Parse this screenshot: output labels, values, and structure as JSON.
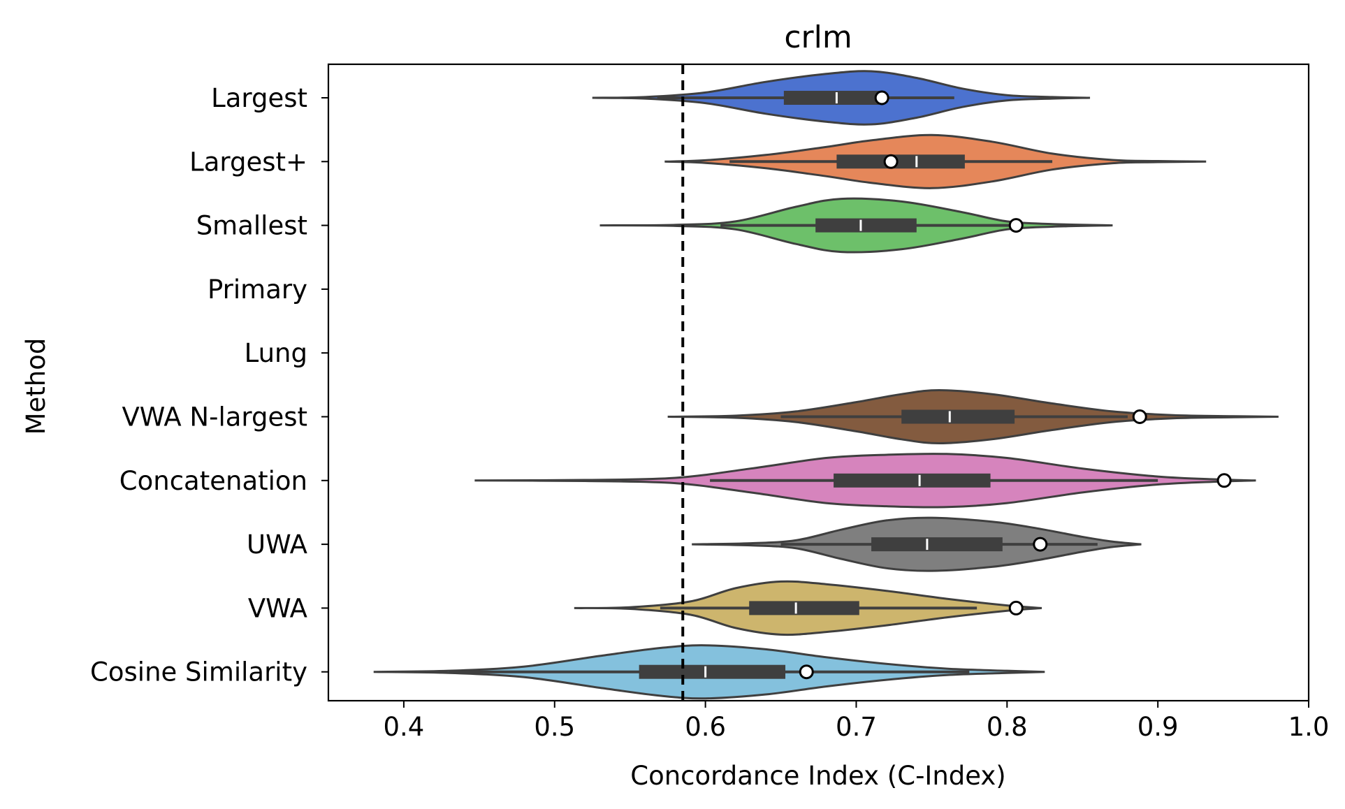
{
  "chart_data": {
    "type": "violin",
    "title": "crlm",
    "xlabel": "Concordance Index (C-Index)",
    "ylabel": "Method",
    "xlim": [
      0.35,
      1.0
    ],
    "xticks": [
      "0.4",
      "0.5",
      "0.6",
      "0.7",
      "0.8",
      "0.9",
      "1.0"
    ],
    "reference_line": {
      "x": 0.585,
      "style": "dashed",
      "color": "#000000"
    },
    "grid": false,
    "categories": [
      "Largest",
      "Largest+",
      "Smallest",
      "Primary",
      "Lung",
      "VWA N-largest",
      "Concatenation",
      "UWA",
      "VWA",
      "Cosine Similarity"
    ],
    "series": [
      {
        "category": "Largest",
        "color": "#4c72cf",
        "min": 0.525,
        "max": 0.855,
        "q1": 0.652,
        "median": 0.687,
        "q3": 0.715,
        "whisker_low": 0.568,
        "whisker_high": 0.765,
        "point": 0.717,
        "density": [
          [
            0.525,
            0.0
          ],
          [
            0.56,
            0.03
          ],
          [
            0.6,
            0.2
          ],
          [
            0.64,
            0.6
          ],
          [
            0.68,
            0.9
          ],
          [
            0.71,
            1.0
          ],
          [
            0.74,
            0.75
          ],
          [
            0.77,
            0.35
          ],
          [
            0.8,
            0.1
          ],
          [
            0.83,
            0.03
          ],
          [
            0.855,
            0.0
          ]
        ]
      },
      {
        "category": "Largest+",
        "color": "#e5875a",
        "min": 0.573,
        "max": 0.932,
        "q1": 0.687,
        "median": 0.74,
        "q3": 0.772,
        "whisker_low": 0.616,
        "whisker_high": 0.83,
        "point": 0.723,
        "density": [
          [
            0.573,
            0.0
          ],
          [
            0.6,
            0.05
          ],
          [
            0.64,
            0.25
          ],
          [
            0.68,
            0.55
          ],
          [
            0.71,
            0.8
          ],
          [
            0.75,
            1.0
          ],
          [
            0.79,
            0.75
          ],
          [
            0.83,
            0.3
          ],
          [
            0.87,
            0.06
          ],
          [
            0.9,
            0.02
          ],
          [
            0.932,
            0.0
          ]
        ]
      },
      {
        "category": "Smallest",
        "color": "#6dc06a",
        "min": 0.53,
        "max": 0.87,
        "q1": 0.673,
        "median": 0.703,
        "q3": 0.74,
        "whisker_low": 0.61,
        "whisker_high": 0.81,
        "point": 0.806,
        "density": [
          [
            0.53,
            0.0
          ],
          [
            0.58,
            0.02
          ],
          [
            0.62,
            0.15
          ],
          [
            0.66,
            0.7
          ],
          [
            0.69,
            1.0
          ],
          [
            0.73,
            0.9
          ],
          [
            0.77,
            0.5
          ],
          [
            0.8,
            0.15
          ],
          [
            0.83,
            0.05
          ],
          [
            0.87,
            0.0
          ]
        ]
      },
      {
        "category": "Primary",
        "empty": true
      },
      {
        "category": "Lung",
        "empty": true
      },
      {
        "category": "VWA N-largest",
        "color": "#835b3f",
        "min": 0.575,
        "max": 0.98,
        "q1": 0.73,
        "median": 0.762,
        "q3": 0.805,
        "whisker_low": 0.65,
        "whisker_high": 0.88,
        "point": 0.888,
        "density": [
          [
            0.575,
            0.0
          ],
          [
            0.62,
            0.04
          ],
          [
            0.66,
            0.2
          ],
          [
            0.7,
            0.55
          ],
          [
            0.73,
            0.85
          ],
          [
            0.755,
            1.0
          ],
          [
            0.79,
            0.85
          ],
          [
            0.83,
            0.5
          ],
          [
            0.87,
            0.2
          ],
          [
            0.91,
            0.06
          ],
          [
            0.95,
            0.02
          ],
          [
            0.98,
            0.0
          ]
        ]
      },
      {
        "category": "Concatenation",
        "color": "#d684bd",
        "min": 0.447,
        "max": 0.965,
        "q1": 0.685,
        "median": 0.742,
        "q3": 0.789,
        "whisker_low": 0.603,
        "whisker_high": 0.9,
        "point": 0.944,
        "density": [
          [
            0.447,
            0.0
          ],
          [
            0.52,
            0.02
          ],
          [
            0.58,
            0.1
          ],
          [
            0.63,
            0.45
          ],
          [
            0.68,
            0.85
          ],
          [
            0.72,
            0.97
          ],
          [
            0.76,
            1.0
          ],
          [
            0.8,
            0.85
          ],
          [
            0.85,
            0.45
          ],
          [
            0.9,
            0.15
          ],
          [
            0.94,
            0.04
          ],
          [
            0.965,
            0.0
          ]
        ]
      },
      {
        "category": "UWA",
        "color": "#7f7f7f",
        "min": 0.591,
        "max": 0.889,
        "q1": 0.71,
        "median": 0.747,
        "q3": 0.797,
        "whisker_low": 0.65,
        "whisker_high": 0.86,
        "point": 0.822,
        "density": [
          [
            0.591,
            0.0
          ],
          [
            0.63,
            0.04
          ],
          [
            0.66,
            0.15
          ],
          [
            0.69,
            0.55
          ],
          [
            0.72,
            0.9
          ],
          [
            0.75,
            1.0
          ],
          [
            0.79,
            0.85
          ],
          [
            0.82,
            0.6
          ],
          [
            0.85,
            0.28
          ],
          [
            0.87,
            0.1
          ],
          [
            0.889,
            0.0
          ]
        ]
      },
      {
        "category": "VWA",
        "color": "#cdb56d",
        "min": 0.513,
        "max": 0.823,
        "q1": 0.629,
        "median": 0.66,
        "q3": 0.702,
        "whisker_low": 0.57,
        "whisker_high": 0.78,
        "point": 0.806,
        "density": [
          [
            0.513,
            0.0
          ],
          [
            0.55,
            0.03
          ],
          [
            0.59,
            0.25
          ],
          [
            0.62,
            0.75
          ],
          [
            0.65,
            1.0
          ],
          [
            0.68,
            0.9
          ],
          [
            0.72,
            0.65
          ],
          [
            0.76,
            0.35
          ],
          [
            0.8,
            0.1
          ],
          [
            0.823,
            0.0
          ]
        ]
      },
      {
        "category": "Cosine Similarity",
        "color": "#84c1dd",
        "min": 0.38,
        "max": 0.825,
        "q1": 0.556,
        "median": 0.6,
        "q3": 0.653,
        "whisker_low": 0.43,
        "whisker_high": 0.775,
        "point": 0.667,
        "density": [
          [
            0.38,
            0.0
          ],
          [
            0.43,
            0.04
          ],
          [
            0.48,
            0.2
          ],
          [
            0.53,
            0.6
          ],
          [
            0.57,
            0.9
          ],
          [
            0.6,
            1.0
          ],
          [
            0.64,
            0.85
          ],
          [
            0.68,
            0.55
          ],
          [
            0.72,
            0.3
          ],
          [
            0.76,
            0.12
          ],
          [
            0.8,
            0.04
          ],
          [
            0.825,
            0.0
          ]
        ]
      }
    ]
  }
}
